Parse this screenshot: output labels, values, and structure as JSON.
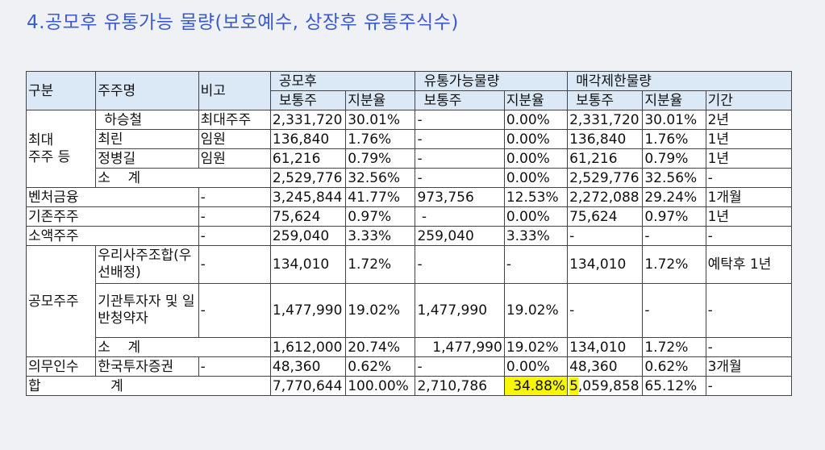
{
  "title": "4.공모후 유통가능 물량(보호예수, 상장후 유통주식수)",
  "header": {
    "col_gubun": "구분",
    "col_juju": "주주명",
    "col_bigo": "비고",
    "grp_gongmohu": "공모후",
    "grp_yutong": "유통가능물량",
    "grp_maegak": "매각제한물량",
    "sub_botong": "보통주",
    "sub_jibun": "지분율",
    "sub_gigan": "기간"
  },
  "groups": {
    "choidae": "최대\n주주 등",
    "gongmo": "공모주주"
  },
  "rows": {
    "r1": {
      "name": "하승철",
      "bigo": "최대주주",
      "g_bo": "2,331,720",
      "g_ji": "30.01%",
      "y_bo": "-",
      "y_ji": "0.00%",
      "m_bo": "2,331,720",
      "m_ji": "30.01%",
      "m_gi": "2년"
    },
    "r2": {
      "name": "최린",
      "bigo": "임원",
      "g_bo": "136,840",
      "g_ji": "1.76%",
      "y_bo": "-",
      "y_ji": "0.00%",
      "m_bo": "136,840",
      "m_ji": "1.76%",
      "m_gi": "1년"
    },
    "r3": {
      "name": "정병길",
      "bigo": "임원",
      "g_bo": "61,216",
      "g_ji": "0.79%",
      "y_bo": "-",
      "y_ji": "0.00%",
      "m_bo": "61,216",
      "m_ji": "0.79%",
      "m_gi": "1년"
    },
    "r4": {
      "name": "소    계",
      "g_bo": "2,529,776",
      "g_ji": "32.56%",
      "y_bo": "-",
      "y_ji": "0.00%",
      "m_bo": "2,529,776",
      "m_ji": "32.56%",
      "m_gi": "-"
    },
    "r5": {
      "name": "벤처금융",
      "bigo": "-",
      "g_bo": "3,245,844",
      "g_ji": "41.77%",
      "y_bo": "973,756",
      "y_ji": "12.53%",
      "m_bo": "2,272,088",
      "m_ji": "29.24%",
      "m_gi": "1개월"
    },
    "r6": {
      "name": "기존주주",
      "bigo": "-",
      "g_bo": "75,624",
      "g_ji": "0.97%",
      "y_bo": " -",
      "y_ji": "0.00%",
      "m_bo": "75,624",
      "m_ji": "0.97%",
      "m_gi": "1년"
    },
    "r7": {
      "name": "소액주주",
      "bigo": "-",
      "g_bo": "259,040",
      "g_ji": "3.33%",
      "y_bo": "259,040",
      "y_ji": "3.33%",
      "m_bo": "-",
      "m_ji": "-",
      "m_gi": "-"
    },
    "r8": {
      "name": "우리사주조합(우선배정)",
      "bigo": "-",
      "g_bo": "134,010",
      "g_ji": "1.72%",
      "y_bo": "-",
      "y_ji": "-",
      "m_bo": "134,010",
      "m_ji": "1.72%",
      "m_gi": "예탁후 1년"
    },
    "r9": {
      "name": "기관투자자 및 일반청약자",
      "bigo": "-",
      "g_bo": "1,477,990",
      "g_ji": "19.02%",
      "y_bo": "1,477,990",
      "y_ji": "19.02%",
      "m_bo": "-",
      "m_ji": "-",
      "m_gi": "-"
    },
    "r10": {
      "name": "소    계",
      "g_bo": "1,612,000",
      "g_ji": "20.74%",
      "y_bo": "1,477,990",
      "y_ji": "19.02%",
      "m_bo": "134,010",
      "m_ji": "1.72%",
      "m_gi": "-"
    },
    "r11": {
      "gubun": "의무인수",
      "name": "한국투자증권",
      "bigo": "-",
      "g_bo": "48,360",
      "g_ji": "0.62%",
      "y_bo": "-",
      "y_ji": "0.00%",
      "m_bo": "48,360",
      "m_ji": "0.62%",
      "m_gi": "3개월"
    },
    "total": {
      "label": "합                계",
      "g_bo": "7,770,644",
      "g_ji": "100.00%",
      "y_bo": "2,710,786",
      "y_ji": "34.88%",
      "m_bo_first": "5",
      "m_bo_rest": ",059,858",
      "m_ji": "65.12%",
      "m_gi": "-"
    }
  },
  "highlight_color": "#f7f700",
  "header_bg": "#dbe9f6",
  "title_color": "#3a5bd0"
}
